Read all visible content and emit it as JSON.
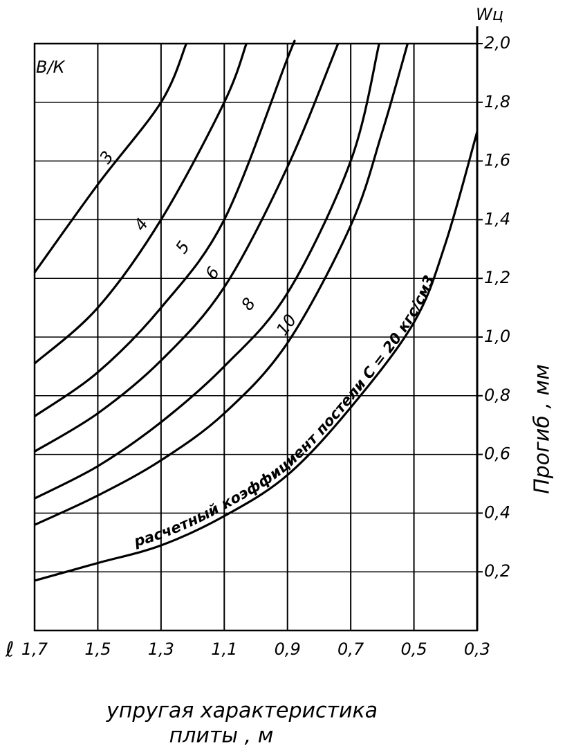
{
  "chart_data": {
    "type": "line",
    "corner_label": "В/К",
    "y_top_label": "Wц",
    "x_axis_symbol": "ℓ",
    "ylabel": "Прогиб , мм",
    "xlabel": [
      "упругая характеристика",
      "плиты , м"
    ],
    "annotation": "расчетный коэффициент постели С = 20 кгс/см3",
    "xlim": [
      1.7,
      0.3
    ],
    "ylim": [
      0,
      2.0
    ],
    "xticks": [
      {
        "value": 1.7,
        "label": "1,7"
      },
      {
        "value": 1.5,
        "label": "1,5"
      },
      {
        "value": 1.3,
        "label": "1,3"
      },
      {
        "value": 1.1,
        "label": "1,1"
      },
      {
        "value": 0.9,
        "label": "0,9"
      },
      {
        "value": 0.7,
        "label": "0,7"
      },
      {
        "value": 0.5,
        "label": "0,5"
      },
      {
        "value": 0.3,
        "label": "0,3"
      }
    ],
    "yticks": [
      {
        "value": 0.2,
        "label": "0,2"
      },
      {
        "value": 0.4,
        "label": "0,4"
      },
      {
        "value": 0.6,
        "label": "0,6"
      },
      {
        "value": 0.8,
        "label": "0,8"
      },
      {
        "value": 1.0,
        "label": "1,0"
      },
      {
        "value": 1.2,
        "label": "1,2"
      },
      {
        "value": 1.4,
        "label": "1,4"
      },
      {
        "value": 1.6,
        "label": "1,6"
      },
      {
        "value": 1.8,
        "label": "1,8"
      },
      {
        "value": 2.0,
        "label": "2,0"
      }
    ],
    "grid": true,
    "series": [
      {
        "name": "3",
        "color": "#000000",
        "x": [
          1.7,
          1.5,
          1.3,
          1.22
        ],
        "values": [
          1.22,
          1.52,
          1.8,
          2.0
        ]
      },
      {
        "name": "4",
        "color": "#000000",
        "x": [
          1.7,
          1.5,
          1.3,
          1.1,
          1.03
        ],
        "values": [
          0.91,
          1.1,
          1.4,
          1.8,
          2.0
        ]
      },
      {
        "name": "5",
        "color": "#000000",
        "x": [
          1.7,
          1.5,
          1.3,
          1.1,
          0.9,
          0.88
        ],
        "values": [
          0.73,
          0.88,
          1.1,
          1.4,
          1.95,
          2.0
        ]
      },
      {
        "name": "6",
        "color": "#000000",
        "x": [
          1.7,
          1.5,
          1.3,
          1.1,
          0.9,
          0.74
        ],
        "values": [
          0.61,
          0.74,
          0.92,
          1.17,
          1.58,
          2.0
        ]
      },
      {
        "name": "8",
        "color": "#000000",
        "x": [
          1.7,
          1.5,
          1.3,
          1.1,
          0.9,
          0.7,
          0.61
        ],
        "values": [
          0.45,
          0.56,
          0.71,
          0.9,
          1.15,
          1.6,
          2.0
        ]
      },
      {
        "name": "10",
        "color": "#000000",
        "x": [
          1.7,
          1.5,
          1.3,
          1.1,
          0.9,
          0.7,
          0.6,
          0.52
        ],
        "values": [
          0.36,
          0.46,
          0.58,
          0.74,
          0.98,
          1.38,
          1.7,
          2.0
        ]
      },
      {
        "name": "С",
        "color": "#000000",
        "x": [
          1.7,
          1.5,
          1.3,
          1.1,
          0.9,
          0.7,
          0.5,
          0.4,
          0.3
        ],
        "values": [
          0.17,
          0.23,
          0.29,
          0.39,
          0.53,
          0.76,
          1.05,
          1.32,
          1.7
        ]
      }
    ]
  }
}
